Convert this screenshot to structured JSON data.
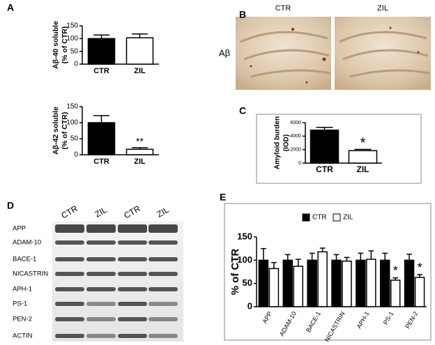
{
  "panel_labels": [
    "A",
    "B",
    "C",
    "D",
    "E"
  ],
  "histology": {
    "columns": [
      "CTR",
      "ZIL"
    ],
    "row_label": "Aβ"
  },
  "blot": {
    "lanes": [
      "CTR",
      "ZIL",
      "CTR",
      "ZIL"
    ],
    "rows": [
      "APP",
      "ADAM-10",
      "BACE-1",
      "NICASTRIN",
      "APH-1",
      "PS-1",
      "PEN-2",
      "ACTIN"
    ]
  },
  "chart_data": [
    {
      "type": "bar",
      "ylabel": [
        "Aβ-40 soluble",
        "(% of CTR)"
      ],
      "categories": [
        "CTR",
        "ZIL"
      ],
      "values": [
        100,
        103
      ],
      "errors": [
        14,
        15
      ],
      "colors": [
        "#000000",
        "#ffffff"
      ],
      "ylim": [
        0,
        150
      ],
      "yticks": [
        0,
        50,
        100,
        150
      ]
    },
    {
      "type": "bar",
      "ylabel": [
        "Aβ-42 soluble",
        "(% of CTR)"
      ],
      "categories": [
        "CTR",
        "ZIL"
      ],
      "values": [
        100,
        17
      ],
      "errors": [
        22,
        5
      ],
      "colors": [
        "#000000",
        "#ffffff"
      ],
      "ylim": [
        0,
        150
      ],
      "yticks": [
        0,
        50,
        100,
        150
      ],
      "annotation": "**"
    },
    {
      "type": "bar",
      "ylabel": [
        "Amyloid burden",
        "(IOD)"
      ],
      "categories": [
        "CTR",
        "ZIL"
      ],
      "values": [
        4900,
        1850
      ],
      "errors": [
        400,
        180
      ],
      "colors": [
        "#000000",
        "#ffffff"
      ],
      "ylim": [
        0,
        6000
      ],
      "yticks": [
        0,
        2000,
        4000,
        6000
      ],
      "annotation": "*"
    },
    {
      "type": "grouped_bar",
      "ylabel": "% of CTR",
      "categories": [
        "APP",
        "ADAM-10",
        "BACE-1",
        "NICASTRIN",
        "APH-1",
        "PS-1",
        "PEN-2"
      ],
      "series": [
        {
          "name": "CTR",
          "color": "#000000",
          "values": [
            100,
            100,
            100,
            100,
            100,
            100,
            100
          ],
          "errors": [
            25,
            12,
            15,
            12,
            15,
            15,
            13
          ]
        },
        {
          "name": "ZIL",
          "color": "#ffffff",
          "values": [
            82,
            87,
            118,
            98,
            102,
            57,
            63
          ],
          "errors": [
            13,
            15,
            8,
            8,
            18,
            5,
            6
          ]
        }
      ],
      "ylim": [
        0,
        150
      ],
      "yticks": [
        0,
        50,
        100,
        150
      ],
      "annotations": [
        "*",
        "*"
      ],
      "legend": "top"
    }
  ]
}
